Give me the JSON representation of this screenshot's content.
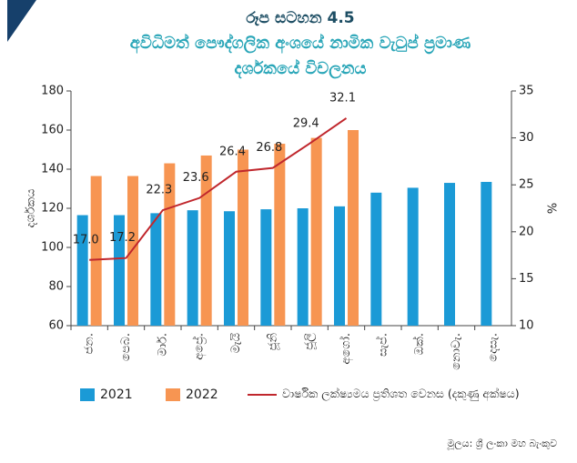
{
  "chart_data": {
    "type": "bar_line",
    "title": "රූප සටහන 4.5",
    "subtitle": [
      "අවිධිමත් පෞද්ගලික අංශයේ නාමික වැටුප් ප්‍රමාණ",
      "දර්ශකයේ විචලනය"
    ],
    "ylabel": "දර්ශකය",
    "y2label": "%",
    "categories": [
      "ජන.",
      "පෙබ.",
      "මාර්.",
      "අප්‍රේ.",
      "මැයි",
      "ජූනි",
      "ජූලි",
      "අගෝ.",
      "සැප්.",
      "ඔක්.",
      "නොවැ.",
      "දෙසැ."
    ],
    "series": [
      {
        "name": "2021",
        "color": "#1b9ad6",
        "values": [
          116.5,
          116.5,
          117.5,
          119,
          118.5,
          119.5,
          120,
          121,
          128,
          130.5,
          133,
          133.5
        ]
      },
      {
        "name": "2022",
        "color": "#f79552",
        "values": [
          136.5,
          136.5,
          143,
          147,
          150,
          153,
          156,
          160,
          null,
          null,
          null,
          null
        ]
      },
      {
        "name": "වාර්ෂික ලක්ෂ්‍යමය ප්‍රතිශත වෙනස (දකුණු අක්ෂය)",
        "color": "#c0272d",
        "axis": "y2",
        "type": "line",
        "values": [
          17.0,
          17.2,
          22.3,
          23.6,
          26.4,
          26.8,
          29.4,
          32.1,
          null,
          null,
          null,
          null
        ],
        "value_labels": [
          "17.0",
          "17.2",
          "22.3",
          "23.6",
          "26.4",
          "26.8",
          "29.4",
          "32.1",
          null,
          null,
          null,
          null
        ]
      }
    ],
    "ylim": [
      60,
      180
    ],
    "yticks": [
      60,
      80,
      100,
      120,
      140,
      160,
      180
    ],
    "y2lim": [
      10,
      35
    ],
    "y2ticks": [
      10,
      15,
      20,
      25,
      30,
      35
    ],
    "grid": false,
    "source": "මූලය: ශ්‍රී ලංකා මහ බැංකුව"
  }
}
